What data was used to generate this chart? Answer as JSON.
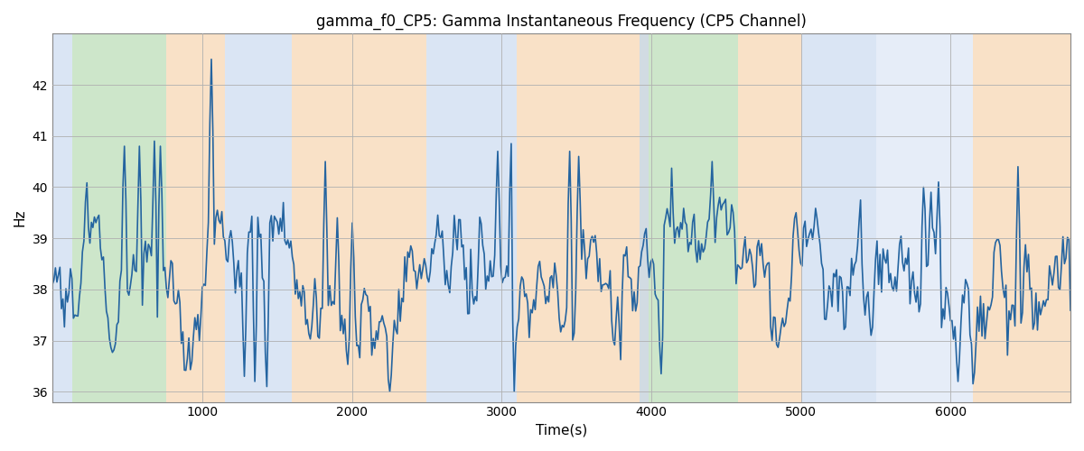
{
  "title": "gamma_f0_CP5: Gamma Instantaneous Frequency (CP5 Channel)",
  "xlabel": "Time(s)",
  "ylabel": "Hz",
  "xlim": [
    0,
    6800
  ],
  "ylim": [
    35.8,
    43.0
  ],
  "yticks": [
    36,
    37,
    38,
    39,
    40,
    41,
    42
  ],
  "xticks": [
    1000,
    2000,
    3000,
    4000,
    5000,
    6000
  ],
  "grid_color": "#b0b0b0",
  "line_color": "#2464a0",
  "line_width": 1.2,
  "bg_bands": [
    {
      "xmin": 0,
      "xmax": 130,
      "color": "#adc6e8",
      "alpha": 0.45
    },
    {
      "xmin": 130,
      "xmax": 760,
      "color": "#90c98a",
      "alpha": 0.45
    },
    {
      "xmin": 760,
      "xmax": 1150,
      "color": "#f5c99a",
      "alpha": 0.55
    },
    {
      "xmin": 1150,
      "xmax": 1600,
      "color": "#adc6e8",
      "alpha": 0.45
    },
    {
      "xmin": 1600,
      "xmax": 2500,
      "color": "#f5c99a",
      "alpha": 0.55
    },
    {
      "xmin": 2500,
      "xmax": 3100,
      "color": "#adc6e8",
      "alpha": 0.45
    },
    {
      "xmin": 3100,
      "xmax": 3920,
      "color": "#f5c99a",
      "alpha": 0.55
    },
    {
      "xmin": 3920,
      "xmax": 3980,
      "color": "#9ab0c0",
      "alpha": 0.45
    },
    {
      "xmin": 3980,
      "xmax": 4580,
      "color": "#90c98a",
      "alpha": 0.45
    },
    {
      "xmin": 4580,
      "xmax": 5000,
      "color": "#f5c99a",
      "alpha": 0.55
    },
    {
      "xmin": 5000,
      "xmax": 5500,
      "color": "#adc6e8",
      "alpha": 0.45
    },
    {
      "xmin": 5500,
      "xmax": 6150,
      "color": "#adc6e8",
      "alpha": 0.3
    },
    {
      "xmin": 6150,
      "xmax": 6800,
      "color": "#f5c99a",
      "alpha": 0.55
    }
  ],
  "n_points": 680,
  "seed": 77,
  "figsize": [
    12.0,
    5.0
  ],
  "dpi": 100,
  "title_fontsize": 12,
  "axis_label_fontsize": 11
}
